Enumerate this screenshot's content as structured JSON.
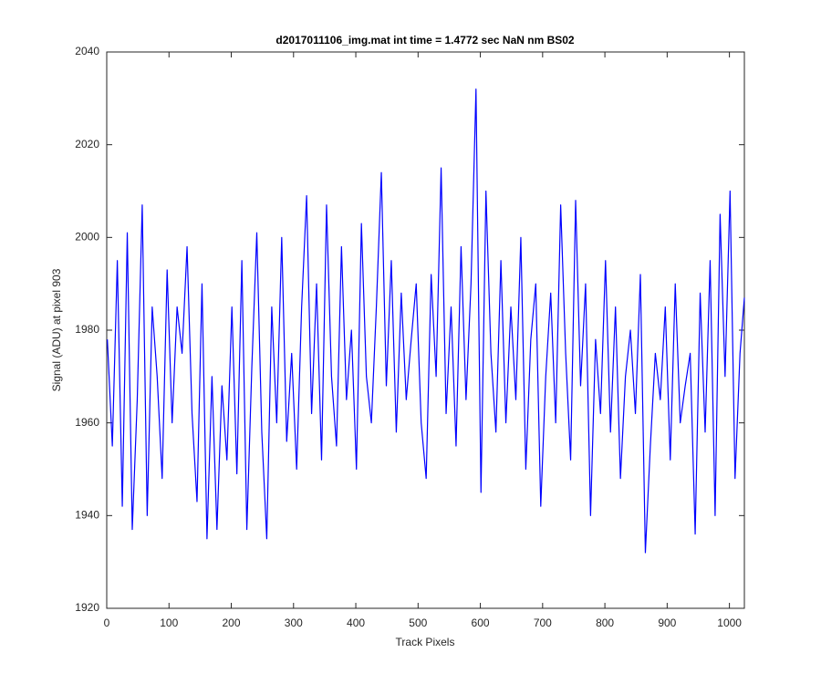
{
  "chart_data": {
    "type": "line",
    "title": "d2017011106_img.mat int time = 1.4772 sec  NaN nm BS02",
    "x_label": "Track Pixels",
    "y_label": "Signal (ADU) at pixel 903",
    "x": [
      1,
      9,
      17,
      25,
      33,
      41,
      49,
      57,
      65,
      73,
      81,
      89,
      97,
      105,
      113,
      121,
      129,
      137,
      145,
      153,
      161,
      169,
      177,
      185,
      193,
      201,
      209,
      217,
      225,
      233,
      241,
      249,
      257,
      265,
      273,
      281,
      289,
      297,
      305,
      313,
      321,
      329,
      337,
      345,
      353,
      361,
      369,
      377,
      385,
      393,
      401,
      409,
      417,
      425,
      433,
      441,
      449,
      457,
      465,
      473,
      481,
      489,
      497,
      505,
      513,
      521,
      529,
      537,
      545,
      553,
      561,
      569,
      577,
      585,
      593,
      601,
      609,
      617,
      625,
      633,
      641,
      649,
      657,
      665,
      673,
      681,
      689,
      697,
      705,
      713,
      721,
      729,
      737,
      745,
      753,
      761,
      769,
      777,
      785,
      793,
      801,
      809,
      817,
      825,
      833,
      841,
      849,
      857,
      865,
      873,
      881,
      889,
      897,
      905,
      913,
      921,
      929,
      937,
      945,
      953,
      961,
      969,
      977,
      985,
      993,
      1001,
      1009,
      1017,
      1024
    ],
    "series": [
      {
        "color": "#0000ff",
        "values": [
          1978,
          1955,
          1995,
          1942,
          2001,
          1937,
          1965,
          2007,
          1940,
          1985,
          1970,
          1948,
          1993,
          1960,
          1985,
          1975,
          1998,
          1962,
          1943,
          1990,
          1935,
          1970,
          1937,
          1968,
          1952,
          1985,
          1949,
          1995,
          1937,
          1972,
          2001,
          1958,
          1935,
          1985,
          1960,
          2000,
          1956,
          1975,
          1950,
          1985,
          2009,
          1962,
          1990,
          1952,
          2007,
          1970,
          1955,
          1998,
          1965,
          1980,
          1950,
          2003,
          1970,
          1960,
          1985,
          2014,
          1968,
          1995,
          1958,
          1988,
          1965,
          1978,
          1990,
          1960,
          1948,
          1992,
          1970,
          2015,
          1962,
          1985,
          1955,
          1998,
          1965,
          1990,
          2032,
          1945,
          2010,
          1975,
          1958,
          1995,
          1960,
          1985,
          1965,
          2000,
          1950,
          1978,
          1990,
          1942,
          1970,
          1988,
          1960,
          2007,
          1975,
          1952,
          2008,
          1968,
          1990,
          1940,
          1978,
          1962,
          1995,
          1958,
          1985,
          1948,
          1970,
          1980,
          1962,
          1992,
          1932,
          1955,
          1975,
          1965,
          1985,
          1952,
          1990,
          1960,
          1968,
          1975,
          1936,
          1988,
          1958,
          1995,
          1940,
          2005,
          1970,
          2010,
          1948,
          1975,
          1987
        ]
      }
    ],
    "xlim": [
      0,
      1024
    ],
    "xticks": [
      0,
      100,
      200,
      300,
      400,
      500,
      600,
      700,
      800,
      900,
      1000
    ],
    "ylim": [
      1920,
      2040
    ],
    "yticks": [
      1920,
      1940,
      1960,
      1980,
      2000,
      2020,
      2040
    ]
  }
}
